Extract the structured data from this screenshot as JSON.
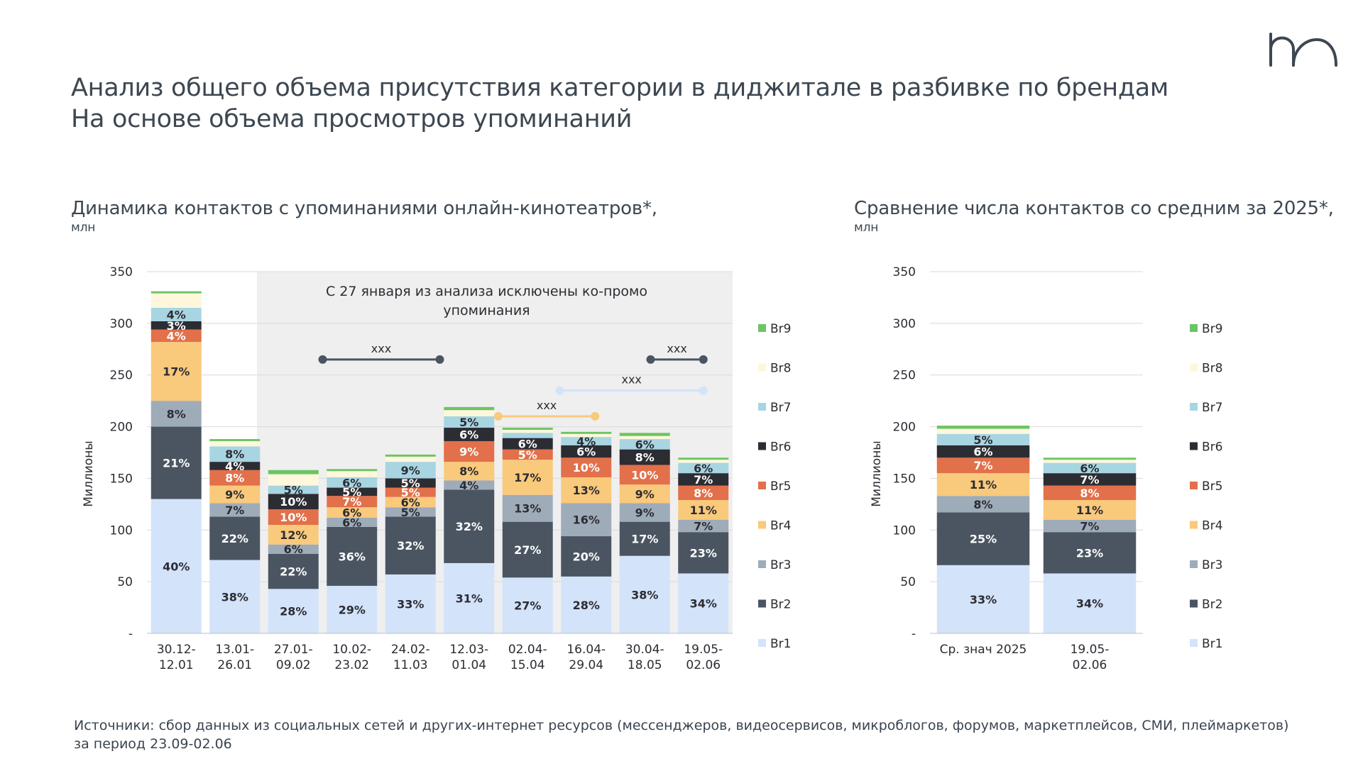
{
  "title_line1": "Анализ общего объема присутствия категории в диджитале в разбивке по брендам",
  "title_line2": "На основе объема просмотров упоминаний",
  "left_heading": "Динамика контактов с упоминаниями онлайн-кинотеатров*,",
  "left_unit": "млн",
  "right_heading": "Сравнение числа контактов со средним за 2025*,",
  "right_unit": "млн",
  "annotation": "С 27 января из анализа исключены ко-промо упоминания",
  "footnote_line1": "Источники: сбор данных из социальных сетей и других-интернет ресурсов (мессенджеров, видеосервисов, микроблогов, форумов, маркетплейсов, СМИ, плеймаркетов)",
  "footnote_line2": "за период 23.09-02.06",
  "colors": {
    "Br1": "#d3e3fa",
    "Br2": "#4b5562",
    "Br3": "#9eabb8",
    "Br4": "#f9c97c",
    "Br5": "#e2704a",
    "Br6": "#2c2c33",
    "Br7": "#a8d5e2",
    "Br8": "#fef7dc",
    "Br9": "#6cc463",
    "grey_band": "#efefef",
    "range_dark": "#4b5562",
    "range_orange": "#f9c97c",
    "range_light": "#d3e3fa"
  },
  "chart_data": [
    {
      "type": "bar",
      "stacked": true,
      "ylabel": "Миллионы",
      "ylim": [
        0,
        350
      ],
      "yticks": [
        "-",
        "50",
        "100",
        "150",
        "200",
        "250",
        "300",
        "350"
      ],
      "categories": [
        "30.12-\n12.01",
        "13.01-\n26.01",
        "27.01-\n09.02",
        "10.02-\n23.02",
        "24.02-\n11.03",
        "12.03-\n01.04",
        "02.04-\n15.04",
        "16.04-\n29.04",
        "30.04-\n18.05",
        "19.05-\n02.06"
      ],
      "legend": [
        "Br9",
        "Br8",
        "Br7",
        "Br6",
        "Br5",
        "Br4",
        "Br3",
        "Br2",
        "Br1"
      ],
      "series": [
        {
          "name": "Br1",
          "values": [
            130,
            71,
            43,
            46,
            57,
            68,
            54,
            55,
            75,
            58
          ],
          "labels": [
            "40%",
            "38%",
            "28%",
            "29%",
            "33%",
            "31%",
            "27%",
            "28%",
            "38%",
            "34%"
          ]
        },
        {
          "name": "Br2",
          "values": [
            70,
            42,
            34,
            57,
            56,
            71,
            54,
            39,
            33,
            40
          ],
          "labels": [
            "21%",
            "22%",
            "22%",
            "36%",
            "32%",
            "32%",
            "27%",
            "20%",
            "17%",
            "23%"
          ]
        },
        {
          "name": "Br3",
          "values": [
            25,
            13,
            9,
            9,
            9,
            9,
            26,
            32,
            18,
            12
          ],
          "labels": [
            "8%",
            "7%",
            "6%",
            "6%",
            "5%",
            "4%",
            "13%",
            "16%",
            "9%",
            "7%"
          ]
        },
        {
          "name": "Br4",
          "values": [
            57,
            17,
            19,
            10,
            10,
            18,
            34,
            25,
            18,
            19
          ],
          "labels": [
            "17%",
            "9%",
            "12%",
            "6%",
            "6%",
            "8%",
            "17%",
            "13%",
            "9%",
            "11%"
          ]
        },
        {
          "name": "Br5",
          "values": [
            12,
            15,
            15,
            11,
            9,
            20,
            10,
            19,
            19,
            14
          ],
          "labels": [
            "4%",
            "8%",
            "10%",
            "7%",
            "5%",
            "9%",
            "5%",
            "10%",
            "10%",
            "8%"
          ]
        },
        {
          "name": "Br6",
          "values": [
            8,
            8,
            15,
            8,
            9,
            13,
            11,
            12,
            15,
            12
          ],
          "labels": [
            "3%",
            "4%",
            "10%",
            "5%",
            "5%",
            "6%",
            "6%",
            "6%",
            "8%",
            "7%"
          ]
        },
        {
          "name": "Br7",
          "values": [
            13,
            15,
            8,
            10,
            16,
            11,
            5,
            8,
            10,
            10
          ],
          "labels": [
            "4%",
            "8%",
            "5%",
            "6%",
            "9%",
            "5%",
            "",
            "4%",
            "6%",
            "6%"
          ]
        },
        {
          "name": "Br8",
          "values": [
            14,
            5,
            11,
            6,
            5,
            6,
            3,
            3,
            3,
            3
          ],
          "labels": [
            "",
            "",
            "",
            "",
            "",
            "",
            "",
            "",
            "",
            ""
          ]
        },
        {
          "name": "Br9",
          "values": [
            2,
            2,
            4,
            2,
            2,
            3,
            2,
            2,
            3,
            2
          ],
          "labels": [
            "",
            "",
            "",
            "",
            "",
            "",
            "",
            "",
            "",
            ""
          ]
        }
      ],
      "ranges": [
        {
          "label": "xxx",
          "from": 3,
          "to": 5,
          "y": 265,
          "color": "dark"
        },
        {
          "label": "xxx",
          "from": 6,
          "to": 7.65,
          "y": 210,
          "color": "orange"
        },
        {
          "label": "xxx",
          "from": 7.05,
          "to": 9.5,
          "y": 235,
          "color": "light"
        },
        {
          "label": "xxx",
          "from": 8.6,
          "to": 9.5,
          "y": 265,
          "color": "dark"
        }
      ]
    },
    {
      "type": "bar",
      "stacked": true,
      "ylabel": "Миллионы",
      "ylim": [
        0,
        350
      ],
      "yticks": [
        "-",
        "50",
        "100",
        "150",
        "200",
        "250",
        "300",
        "350"
      ],
      "categories": [
        "Ср. знач 2025",
        "19.05-\n02.06"
      ],
      "legend": [
        "Br9",
        "Br8",
        "Br7",
        "Br6",
        "Br5",
        "Br4",
        "Br3",
        "Br2",
        "Br1"
      ],
      "series": [
        {
          "name": "Br1",
          "values": [
            66,
            58
          ],
          "labels": [
            "33%",
            "34%"
          ]
        },
        {
          "name": "Br2",
          "values": [
            51,
            40
          ],
          "labels": [
            "25%",
            "23%"
          ]
        },
        {
          "name": "Br3",
          "values": [
            16,
            12
          ],
          "labels": [
            "8%",
            "7%"
          ]
        },
        {
          "name": "Br4",
          "values": [
            22,
            19
          ],
          "labels": [
            "11%",
            "11%"
          ]
        },
        {
          "name": "Br5",
          "values": [
            15,
            14
          ],
          "labels": [
            "7%",
            "8%"
          ]
        },
        {
          "name": "Br6",
          "values": [
            12,
            12
          ],
          "labels": [
            "6%",
            "7%"
          ]
        },
        {
          "name": "Br7",
          "values": [
            11,
            10
          ],
          "labels": [
            "5%",
            "6%"
          ]
        },
        {
          "name": "Br8",
          "values": [
            5,
            3
          ],
          "labels": [
            "",
            ""
          ]
        },
        {
          "name": "Br9",
          "values": [
            3,
            2
          ],
          "labels": [
            "",
            ""
          ]
        }
      ]
    }
  ]
}
